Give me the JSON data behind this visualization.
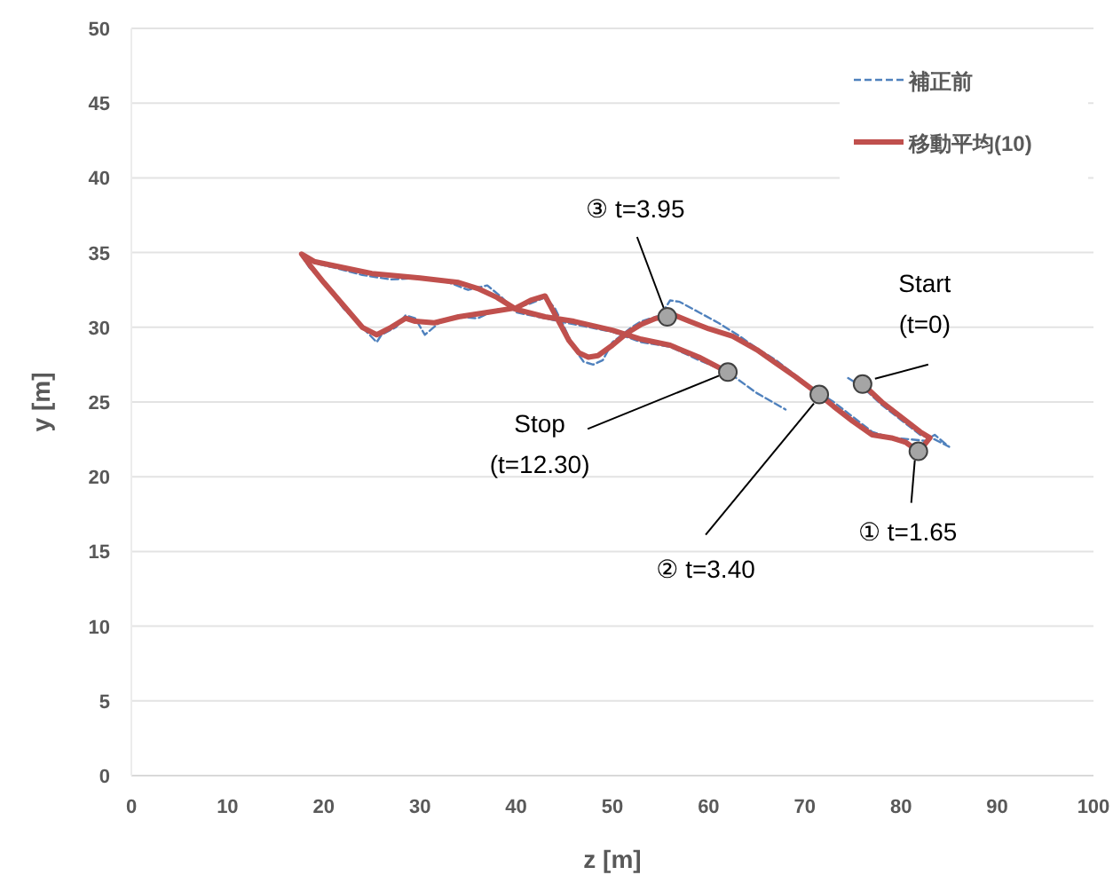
{
  "chart_data": {
    "type": "line",
    "xlabel": "z [m]",
    "ylabel": "y [m]",
    "xlim": [
      0,
      100
    ],
    "xticks": [
      0,
      10,
      20,
      30,
      40,
      50,
      60,
      70,
      80,
      90,
      100
    ],
    "ylim": [
      0,
      50
    ],
    "yticks": [
      0,
      5,
      10,
      15,
      20,
      25,
      30,
      35,
      40,
      45,
      50
    ],
    "grid": "y",
    "legend": "top right",
    "series": [
      {
        "name": "補正前",
        "color": "#4f81bd",
        "line_style": "dashed",
        "x": [
          74.5,
          76,
          78,
          80,
          82,
          83.5,
          85,
          83.5,
          82.5,
          81,
          79,
          77,
          75,
          73,
          71,
          69,
          67,
          65,
          63,
          61,
          59,
          57,
          56,
          55,
          54,
          53,
          52,
          50,
          49,
          48,
          47,
          46,
          45,
          44,
          43,
          41.5,
          40,
          38,
          36,
          34,
          32,
          30.5,
          29.5,
          28.5,
          27.5,
          26,
          25.5,
          24,
          22,
          20,
          18.5,
          17.5,
          19,
          21,
          24,
          27,
          30,
          33,
          35,
          37,
          38.5,
          40,
          43,
          46,
          50,
          53,
          56,
          59,
          62,
          65,
          68
        ],
        "values": [
          26.6,
          26,
          24.8,
          23.8,
          22.8,
          22.5,
          22,
          22.8,
          22.4,
          22.5,
          22.6,
          23,
          24,
          25,
          25.8,
          26.8,
          27.8,
          28.6,
          29.5,
          30.3,
          31,
          31.7,
          31.8,
          30.8,
          30.6,
          30.4,
          30,
          29,
          27.8,
          27.5,
          27.7,
          28.6,
          30,
          31.3,
          32,
          31.6,
          31.3,
          31.2,
          30.6,
          30.7,
          30.3,
          29.5,
          30.6,
          30.8,
          30,
          29.5,
          29,
          30,
          31.3,
          33,
          34,
          35,
          34.3,
          34,
          33.5,
          33.2,
          33.3,
          33,
          32.5,
          32.8,
          32,
          31,
          30.6,
          30.2,
          29.7,
          29,
          28.7,
          27.8,
          27,
          25.6,
          24.5
        ]
      },
      {
        "name": "移動平均(10)",
        "color": "#c0504d",
        "line_style": "solid",
        "x": [
          76,
          78,
          80,
          82,
          83,
          82.5,
          81.8,
          80.5,
          79,
          77,
          75,
          73,
          71.5,
          69,
          67,
          65,
          62.5,
          60,
          58,
          56.5,
          55.7,
          54.5,
          53,
          51.5,
          50,
          48.5,
          47.5,
          46.5,
          45.5,
          44,
          43,
          41.5,
          40,
          37,
          34,
          31.5,
          29.5,
          28.5,
          27,
          25.5,
          24,
          22,
          20,
          18.5,
          17.7,
          19,
          22,
          25,
          30,
          34,
          36,
          38,
          40,
          43,
          46,
          50,
          53,
          56,
          59,
          62
        ],
        "values": [
          26.2,
          25,
          24,
          23,
          22.6,
          22.2,
          21.7,
          22.3,
          22.6,
          22.8,
          23.7,
          24.7,
          25.5,
          26.7,
          27.6,
          28.5,
          29.4,
          29.9,
          30.4,
          30.8,
          30.7,
          30.6,
          30.2,
          29.6,
          28.8,
          28.1,
          28,
          28.3,
          29.1,
          30.9,
          32.1,
          31.8,
          31.3,
          31,
          30.7,
          30.3,
          30.4,
          30.6,
          30,
          29.5,
          30,
          31.5,
          33,
          34.2,
          34.9,
          34.4,
          34,
          33.6,
          33.3,
          33,
          32.6,
          32,
          31.2,
          30.7,
          30.4,
          29.8,
          29.2,
          28.8,
          28,
          27
        ]
      },
      {
        "type": "scatter",
        "color": "#a5a5a5",
        "marker": "circle",
        "x": [
          76,
          81.8,
          71.5,
          55.7,
          62
        ],
        "values": [
          26.2,
          21.7,
          25.5,
          30.7,
          27
        ]
      }
    ],
    "annotations": [
      {
        "text": "Start\n(t=0)",
        "x": 76,
        "y": 26.2
      },
      {
        "text": "① t=1.65",
        "x": 81.8,
        "y": 21.7
      },
      {
        "text": "② t=3.40",
        "x": 71.5,
        "y": 25.5
      },
      {
        "text": "③ t=3.95",
        "x": 55.7,
        "y": 30.7
      },
      {
        "text": "Stop\n(t=12.30)",
        "x": 62,
        "y": 27
      }
    ]
  }
}
